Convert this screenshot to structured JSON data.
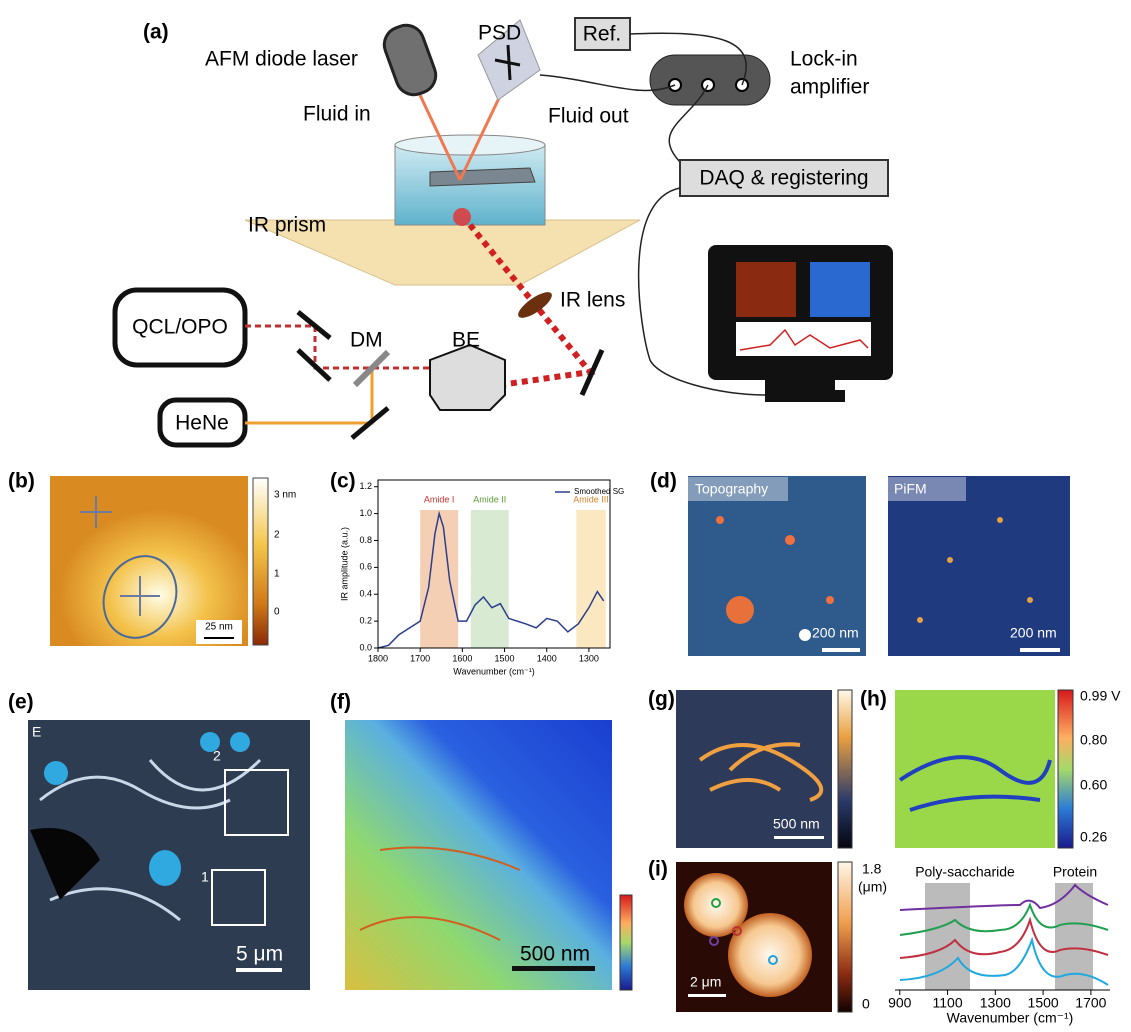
{
  "panel_labels": [
    "(a)",
    "(b)",
    "(c)",
    "(d)",
    "(e)",
    "(f)",
    "(g)",
    "(h)",
    "(i)"
  ],
  "setup": {
    "laser": "AFM diode laser",
    "psd": "PSD",
    "ref": "Ref.",
    "lockin": [
      "Lock-in",
      "amplifier"
    ],
    "fluid_in": "Fluid in",
    "fluid_out": "Fluid out",
    "daq": "DAQ & registering",
    "prism": "IR prism",
    "lens": "IR lens",
    "source": "QCL/OPO",
    "dm": "DM",
    "be": "BE",
    "hene": "HeNe"
  },
  "panel_b": {
    "colorbar": [
      "3 nm",
      "2",
      "1",
      "0"
    ],
    "scale": "25 nm"
  },
  "panel_d": {
    "titles": [
      "Topography",
      "PiFM"
    ],
    "scales": [
      "200 nm",
      "200 nm"
    ]
  },
  "panel_e": {
    "corner": "E",
    "boxes": [
      "2",
      "1"
    ],
    "scale": "5 μm"
  },
  "panel_f": {
    "scale": "500 nm"
  },
  "panel_g": {
    "scale": "500 nm"
  },
  "panel_h": {
    "colorbar": [
      "0.99 V",
      "0.80",
      "0.60",
      "0.26"
    ]
  },
  "panel_i": {
    "colorbar": [
      "1.8",
      "(μm)",
      "0"
    ],
    "scale": "2 μm",
    "regions": [
      "Poly-saccharide",
      "Protein"
    ],
    "xticks": [
      900,
      1100,
      1300,
      1500,
      1700
    ],
    "xlim": [
      880,
      1780
    ],
    "xlabel": "Wavenumber (cm⁻¹)"
  },
  "chart_data": {
    "type": "line",
    "x_label": "Wavenumber (cm⁻¹)",
    "y_label": "IR amplitude (a.u.)",
    "x": [
      1800,
      1775,
      1750,
      1725,
      1700,
      1680,
      1665,
      1655,
      1645,
      1630,
      1610,
      1590,
      1570,
      1550,
      1530,
      1510,
      1490,
      1470,
      1450,
      1425,
      1400,
      1375,
      1350,
      1325,
      1300,
      1280,
      1265
    ],
    "series": [
      {
        "name": "Smoothed SG",
        "color": "#2b3f8c",
        "values": [
          0.0,
          0.02,
          0.1,
          0.15,
          0.2,
          0.45,
          0.85,
          1.0,
          0.9,
          0.5,
          0.2,
          0.2,
          0.32,
          0.38,
          0.3,
          0.33,
          0.22,
          0.2,
          0.18,
          0.15,
          0.22,
          0.2,
          0.12,
          0.18,
          0.3,
          0.42,
          0.35
        ]
      }
    ],
    "xlim": [
      1800,
      1250
    ],
    "xticks": [
      1800,
      1700,
      1600,
      1500,
      1400,
      1300
    ],
    "ylim": [
      0,
      1.25
    ],
    "yticks": [
      {
        "value": 0,
        "label": "0.0"
      },
      {
        "value": 0.2,
        "label": "0.2"
      },
      {
        "value": 0.4,
        "label": "0.4"
      },
      {
        "value": 0.6,
        "label": "0.6"
      },
      {
        "value": 0.8,
        "label": "0.8"
      },
      {
        "value": 1,
        "label": "1.0"
      },
      {
        "value": 1.2,
        "label": "1.2"
      }
    ],
    "annotations": [
      {
        "text": "Amide I",
        "range": [
          1700,
          1610
        ],
        "color": "#f5cfb4",
        "text_color": "#c8322e"
      },
      {
        "text": "Amide II",
        "range": [
          1580,
          1490
        ],
        "color": "#d9ead3",
        "text_color": "#5f9a3a"
      },
      {
        "text": "Amide III",
        "range": [
          1330,
          1260
        ],
        "color": "#fbe8c0",
        "text_color": "#d9822b"
      }
    ]
  }
}
